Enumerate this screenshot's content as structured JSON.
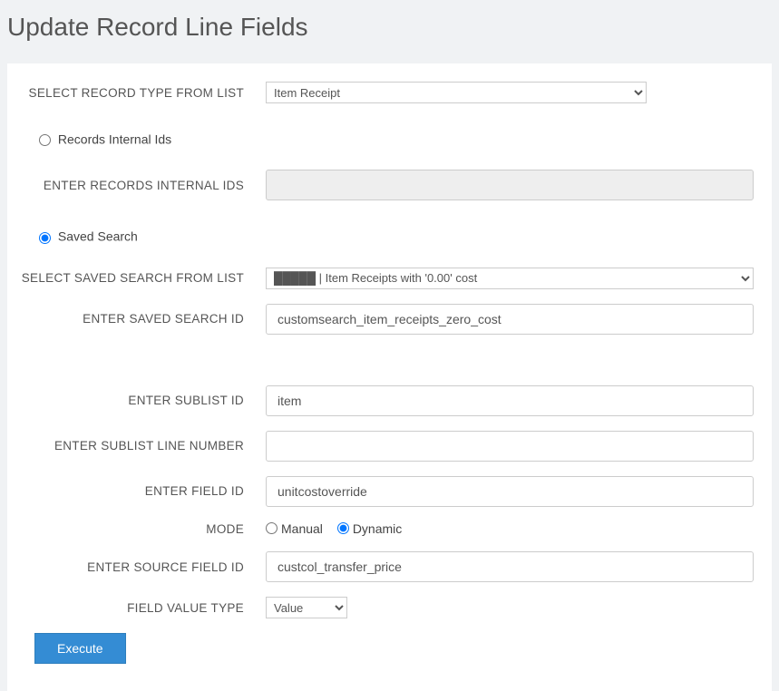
{
  "page": {
    "title": "Update Record Line Fields"
  },
  "form": {
    "record_type": {
      "label": "SELECT RECORD TYPE FROM LIST",
      "value": "Item Receipt"
    },
    "source_mode": {
      "records_ids_label": "Records Internal Ids",
      "saved_search_label": "Saved Search",
      "selected": "saved_search"
    },
    "records_internal_ids": {
      "label": "ENTER RECORDS INTERNAL IDS",
      "value": ""
    },
    "saved_search_select": {
      "label": "SELECT SAVED SEARCH FROM LIST",
      "value": "█████ | Item Receipts with '0.00' cost"
    },
    "saved_search_id": {
      "label": "ENTER SAVED SEARCH ID",
      "value": "customsearch_item_receipts_zero_cost"
    },
    "sublist_id": {
      "label": "ENTER SUBLIST ID",
      "value": "item"
    },
    "sublist_line_number": {
      "label": "ENTER SUBLIST LINE NUMBER",
      "value": ""
    },
    "field_id": {
      "label": "ENTER FIELD ID",
      "value": "unitcostoverride"
    },
    "mode": {
      "label": "MODE",
      "manual_label": "Manual",
      "dynamic_label": "Dynamic",
      "selected": "dynamic"
    },
    "source_field_id": {
      "label": "ENTER SOURCE FIELD ID",
      "value": "custcol_transfer_price"
    },
    "field_value_type": {
      "label": "FIELD VALUE TYPE",
      "value": "Value"
    },
    "execute_label": "Execute"
  },
  "colors": {
    "page_bg": "#f0f2f4",
    "panel_bg": "#ffffff",
    "button_bg": "#348cd4",
    "disabled_bg": "#eeeeee",
    "border": "#cccccc",
    "text": "#555555"
  }
}
